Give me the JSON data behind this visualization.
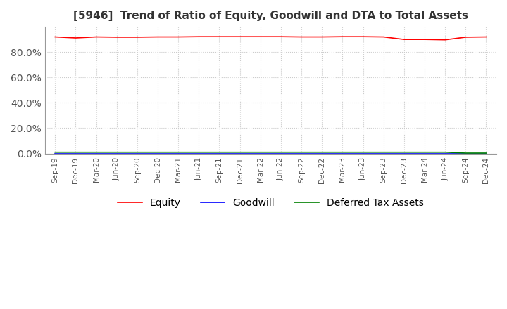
{
  "title": "[5946]  Trend of Ratio of Equity, Goodwill and DTA to Total Assets",
  "title_fontsize": 11,
  "xlabels": [
    "Sep-19",
    "Dec-19",
    "Mar-20",
    "Jun-20",
    "Sep-20",
    "Dec-20",
    "Mar-21",
    "Jun-21",
    "Sep-21",
    "Dec-21",
    "Mar-22",
    "Jun-22",
    "Sep-22",
    "Dec-22",
    "Mar-23",
    "Jun-23",
    "Sep-23",
    "Dec-23",
    "Mar-24",
    "Jun-24",
    "Sep-24",
    "Dec-24"
  ],
  "equity": [
    0.92,
    0.912,
    0.92,
    0.918,
    0.918,
    0.92,
    0.92,
    0.922,
    0.922,
    0.922,
    0.922,
    0.922,
    0.92,
    0.92,
    0.922,
    0.922,
    0.92,
    0.9,
    0.9,
    0.897,
    0.918,
    0.92
  ],
  "goodwill": [
    0.0,
    0.0,
    0.0,
    0.0,
    0.0,
    0.0,
    0.0,
    0.0,
    0.0,
    0.0,
    0.0,
    0.0,
    0.0,
    0.0,
    0.0,
    0.0,
    0.0,
    0.0,
    0.0,
    0.0,
    0.0,
    0.0
  ],
  "dta": [
    0.01,
    0.01,
    0.01,
    0.01,
    0.01,
    0.01,
    0.01,
    0.01,
    0.01,
    0.01,
    0.01,
    0.01,
    0.01,
    0.01,
    0.01,
    0.01,
    0.01,
    0.01,
    0.01,
    0.01,
    0.003,
    0.003
  ],
  "equity_color": "#ff0000",
  "goodwill_color": "#0000ff",
  "dta_color": "#008000",
  "ylim": [
    0.0,
    1.0
  ],
  "yticks": [
    0.0,
    0.2,
    0.4,
    0.6,
    0.8
  ],
  "background_color": "#ffffff",
  "grid_color": "#cccccc",
  "legend_labels": [
    "Equity",
    "Goodwill",
    "Deferred Tax Assets"
  ]
}
